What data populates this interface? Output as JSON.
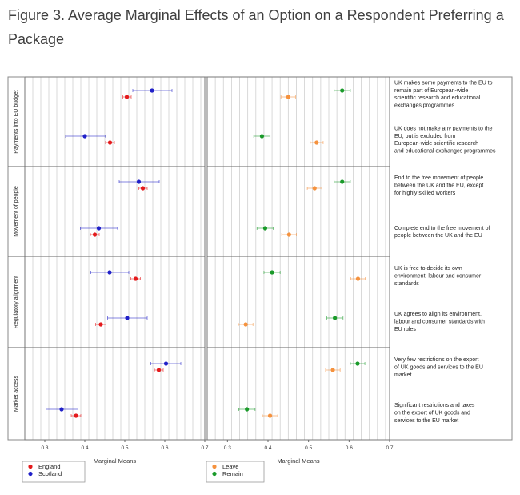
{
  "title": "Figure 3. Average Marginal Effects of an Option on a Respondent Preferring a Package",
  "chart_data": {
    "type": "scatter",
    "title": "Figure 3. Average Marginal Effects of an Option on a Respondent Preferring a Package",
    "xlabel": "Marginal Means",
    "xlim": [
      0.25,
      0.7
    ],
    "xticks": [
      0.3,
      0.4,
      0.5,
      0.6,
      0.7
    ],
    "grid": true,
    "groups": [
      "Payments into EU budget",
      "Movement of people",
      "Regulatory alignment",
      "Market access"
    ],
    "options": [
      {
        "group": 0,
        "label": "UK makes some payments to the EU to remain part of European-wide scientific research and educational exchanges programmes"
      },
      {
        "group": 0,
        "label": "UK does not make any payments to the EU, but is excluded from European-wide scientific research and educational exchanges programmes"
      },
      {
        "group": 1,
        "label": "End to the free movement of people between the UK and the EU, except for highly skilled workers"
      },
      {
        "group": 1,
        "label": "Complete end to the free movement of people between the UK and the EU"
      },
      {
        "group": 2,
        "label": "UK is free to decide its own environment, labour and consumer standards"
      },
      {
        "group": 2,
        "label": "UK agrees to align its environment, labour and consumer standards with EU rules"
      },
      {
        "group": 3,
        "label": "Very few restrictions on the export of UK goods and services to the EU market"
      },
      {
        "group": 3,
        "label": "Significant restrictions and taxes on the export of UK goods and services to the EU market"
      }
    ],
    "panels": [
      {
        "legend": [
          {
            "name": "England",
            "color": "#e41a1c"
          },
          {
            "name": "Scotland",
            "color": "#2020c8"
          }
        ],
        "series": [
          {
            "name": "England",
            "color": "#e41a1c",
            "values": [
              0.505,
              0.463,
              0.545,
              0.425,
              0.527,
              0.44,
              0.585,
              0.378
            ],
            "lower": [
              0.495,
              0.452,
              0.535,
              0.414,
              0.515,
              0.427,
              0.574,
              0.366
            ],
            "upper": [
              0.516,
              0.474,
              0.556,
              0.436,
              0.539,
              0.453,
              0.596,
              0.39
            ]
          },
          {
            "name": "Scotland",
            "color": "#2020c8",
            "values": [
              0.568,
              0.4,
              0.535,
              0.435,
              0.462,
              0.506,
              0.603,
              0.342
            ],
            "lower": [
              0.52,
              0.352,
              0.486,
              0.389,
              0.415,
              0.457,
              0.565,
              0.303
            ],
            "upper": [
              0.618,
              0.452,
              0.586,
              0.482,
              0.51,
              0.556,
              0.64,
              0.383
            ]
          }
        ]
      },
      {
        "legend": [
          {
            "name": "Leave",
            "color": "#f5923e"
          },
          {
            "name": "Remain",
            "color": "#1a9a2a"
          }
        ],
        "series": [
          {
            "name": "Leave",
            "color": "#f5923e",
            "values": [
              0.45,
              0.52,
              0.515,
              0.452,
              0.622,
              0.345,
              0.56,
              0.405
            ],
            "lower": [
              0.432,
              0.504,
              0.497,
              0.434,
              0.604,
              0.327,
              0.542,
              0.386
            ],
            "upper": [
              0.468,
              0.536,
              0.533,
              0.47,
              0.64,
              0.363,
              0.578,
              0.424
            ]
          },
          {
            "name": "Remain",
            "color": "#1a9a2a",
            "values": [
              0.583,
              0.385,
              0.583,
              0.393,
              0.41,
              0.565,
              0.621,
              0.348
            ],
            "lower": [
              0.563,
              0.365,
              0.563,
              0.373,
              0.39,
              0.545,
              0.603,
              0.328
            ],
            "upper": [
              0.603,
              0.405,
              0.603,
              0.413,
              0.43,
              0.585,
              0.639,
              0.368
            ]
          }
        ]
      }
    ]
  }
}
